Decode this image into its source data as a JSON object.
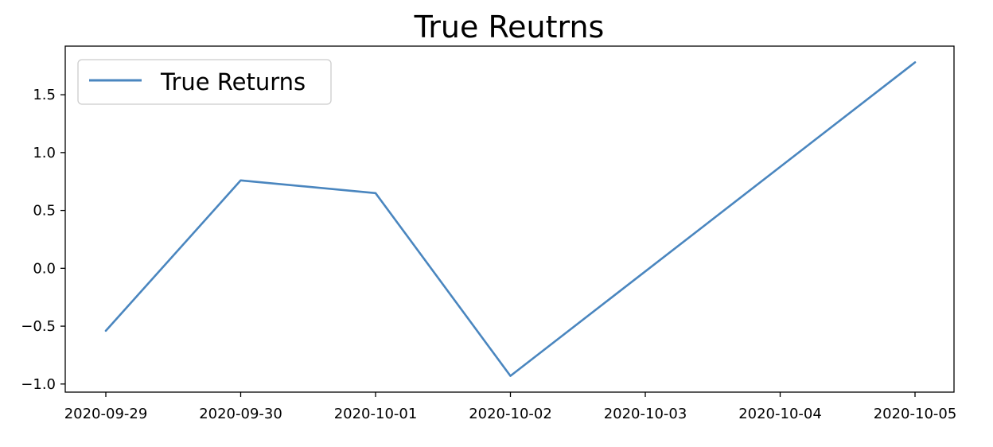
{
  "chart_data": {
    "type": "line",
    "title": "True Reutrns",
    "xlabel": "",
    "ylabel": "",
    "x": [
      "2020-09-29",
      "2020-09-30",
      "2020-10-01",
      "2020-10-02",
      "2020-10-03",
      "2020-10-04",
      "2020-10-05"
    ],
    "series": [
      {
        "name": "True Returns",
        "color": "#4a86bf",
        "points": [
          {
            "x": "2020-09-29",
            "y": -0.54
          },
          {
            "x": "2020-09-30",
            "y": 0.76
          },
          {
            "x": "2020-10-01",
            "y": 0.65
          },
          {
            "x": "2020-10-02",
            "y": -0.93
          },
          {
            "x": "2020-10-05",
            "y": 1.78
          }
        ]
      }
    ],
    "x_ticks": [
      "2020-09-29",
      "2020-09-30",
      "2020-10-01",
      "2020-10-02",
      "2020-10-03",
      "2020-10-04",
      "2020-10-05"
    ],
    "y_ticks": [
      -1.0,
      -0.5,
      0.0,
      0.5,
      1.0,
      1.5
    ],
    "y_tick_labels": [
      "−1.0",
      "−0.5",
      "0.0",
      "0.5",
      "1.0",
      "1.5"
    ],
    "ylim": [
      -1.07,
      1.92
    ],
    "grid": false,
    "legend": {
      "placement": "upper-left",
      "entries": [
        "True Returns"
      ]
    }
  }
}
